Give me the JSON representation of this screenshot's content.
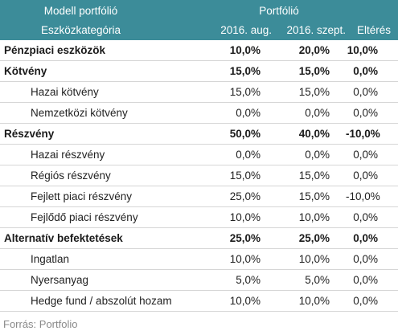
{
  "header": {
    "left_top": "Modell portfólió",
    "left_bottom": "Eszközkategória",
    "right_top": "Portfólió",
    "col1": "2016. aug.",
    "col2": "2016. szept.",
    "col3": "Eltérés"
  },
  "rows": [
    {
      "name": "Pénzpiaci eszközök",
      "aug": "10,0%",
      "szept": "20,0%",
      "diff": "10,0%"
    },
    {
      "name": "Kötvény",
      "aug": "15,0%",
      "szept": "15,0%",
      "diff": "0,0%"
    },
    {
      "name": "Hazai kötvény",
      "aug": "15,0%",
      "szept": "15,0%",
      "diff": "0,0%"
    },
    {
      "name": "Nemzetközi kötvény",
      "aug": "0,0%",
      "szept": "0,0%",
      "diff": "0,0%"
    },
    {
      "name": "Részvény",
      "aug": "50,0%",
      "szept": "40,0%",
      "diff": "-10,0%"
    },
    {
      "name": "Hazai részvény",
      "aug": "0,0%",
      "szept": "0,0%",
      "diff": "0,0%"
    },
    {
      "name": "Régiós részvény",
      "aug": "15,0%",
      "szept": "15,0%",
      "diff": "0,0%"
    },
    {
      "name": "Fejlett piaci részvény",
      "aug": "25,0%",
      "szept": "15,0%",
      "diff": "-10,0%"
    },
    {
      "name": "Fejlődő piaci részvény",
      "aug": "10,0%",
      "szept": "10,0%",
      "diff": "0,0%"
    },
    {
      "name": "Alternatív befektetések",
      "aug": "25,0%",
      "szept": "25,0%",
      "diff": "0,0%"
    },
    {
      "name": "Ingatlan",
      "aug": "10,0%",
      "szept": "10,0%",
      "diff": "0,0%"
    },
    {
      "name": "Nyersanyag",
      "aug": "5,0%",
      "szept": "5,0%",
      "diff": "0,0%"
    },
    {
      "name": "Hedge fund / abszolút hozam",
      "aug": "10,0%",
      "szept": "10,0%",
      "diff": "0,0%"
    }
  ],
  "source": "Forrás: Portfolio"
}
